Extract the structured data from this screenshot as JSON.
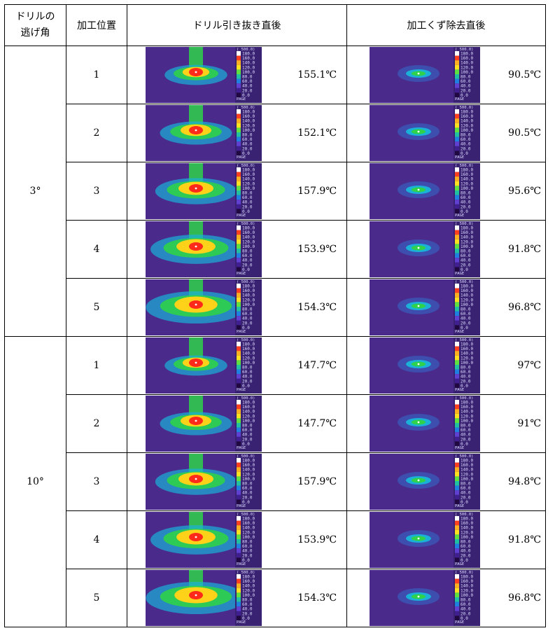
{
  "headers": {
    "angle": "ドリルの逃げ角",
    "angle_line1": "ドリルの",
    "angle_line2": "逃げ角",
    "position": "加工位置",
    "drill_after": "ドリル引き抜き直後",
    "chip_after": "加工くず除去直後"
  },
  "thermo_scale": {
    "range_label": "( 500.0)",
    "ticks": [
      "180.0",
      "160.0",
      "140.0",
      "120.0",
      "100.0",
      "80.0",
      "60.0",
      "40.0",
      "20.0",
      "0.0"
    ],
    "page_label": "PAGE"
  },
  "groups": [
    {
      "angle": "3°",
      "rows": [
        {
          "position": "1",
          "drill_temp": "155.1℃",
          "chip_temp": "90.5℃"
        },
        {
          "position": "2",
          "drill_temp": "152.1℃",
          "chip_temp": "90.5℃"
        },
        {
          "position": "3",
          "drill_temp": "157.9℃",
          "chip_temp": "95.6℃"
        },
        {
          "position": "4",
          "drill_temp": "153.9℃",
          "chip_temp": "91.8℃"
        },
        {
          "position": "5",
          "drill_temp": "154.3℃",
          "chip_temp": "96.8℃"
        }
      ]
    },
    {
      "angle": "10°",
      "rows": [
        {
          "position": "1",
          "drill_temp": "147.7℃",
          "chip_temp": "97℃"
        },
        {
          "position": "2",
          "drill_temp": "147.7℃",
          "chip_temp": "91℃"
        },
        {
          "position": "3",
          "drill_temp": "157.9℃",
          "chip_temp": "94.8℃"
        },
        {
          "position": "4",
          "drill_temp": "153.9℃",
          "chip_temp": "91.8℃"
        },
        {
          "position": "5",
          "drill_temp": "154.3℃",
          "chip_temp": "96.8℃"
        }
      ]
    }
  ],
  "colors": {
    "background": "#4a2a8a",
    "hot_core": "#ff2a1a",
    "warm": "#ffd21a",
    "mid": "#2fd24a",
    "cool": "#1ab0d8"
  }
}
